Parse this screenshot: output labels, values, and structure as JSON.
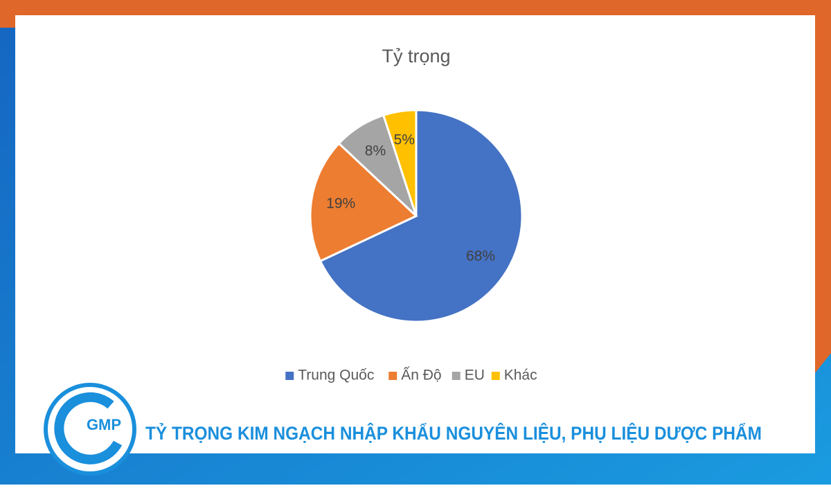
{
  "chart_data": {
    "type": "pie",
    "title": "Tỷ trọng",
    "categories": [
      "Trung Quốc",
      "Ấn Độ",
      "EU",
      "Khác"
    ],
    "values": [
      68,
      19,
      8,
      5
    ],
    "value_labels": [
      "68%",
      "19%",
      "8%",
      "5%"
    ],
    "colors": [
      "#4472c4",
      "#ed7d31",
      "#a5a5a5",
      "#ffc000"
    ],
    "legend": "bottom"
  },
  "banner": {
    "logo": "GMP",
    "text": "TỶ TRỌNG KIM NGẠCH NHẬP KHẨU NGUYÊN LIỆU, PHỤ LIỆU DƯỢC PHẨM"
  }
}
